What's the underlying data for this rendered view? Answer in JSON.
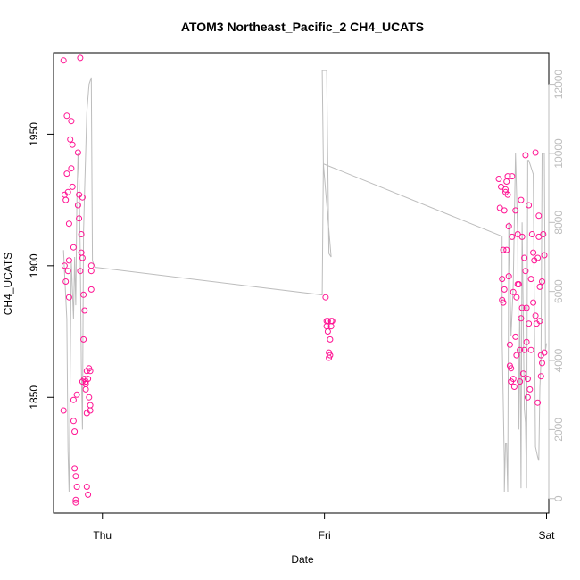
{
  "chart_data": {
    "type": "scatter",
    "title": "ATOM3 Northeast_Pacific_2 CH4_UCATS",
    "xlabel": "Date",
    "ylabel": "CH4_UCATS",
    "xlim": [
      -0.22,
      2.01
    ],
    "ylim": [
      1806,
      1981
    ],
    "y2lim": [
      -420,
      12920
    ],
    "x_ticks": [
      {
        "value": 0,
        "label": "Thu"
      },
      {
        "value": 1,
        "label": "Fri"
      },
      {
        "value": 2,
        "label": "Sat"
      }
    ],
    "y_ticks": [
      1850,
      1900,
      1950
    ],
    "y2_ticks": [
      0,
      2000,
      4000,
      6000,
      8000,
      10000,
      12000
    ],
    "grid": false,
    "colors": {
      "points": "#ff1493",
      "altitude_line": "#bdbdbd",
      "axis": "#000000",
      "right_axis": "#bdbdbd"
    },
    "series": [
      {
        "marker": "open-circle",
        "axis": "left",
        "points": [
          [
            -0.175,
            1978
          ],
          [
            -0.175,
            1845
          ],
          [
            -0.17,
            1927
          ],
          [
            -0.17,
            1900
          ],
          [
            -0.165,
            1894
          ],
          [
            -0.165,
            1925
          ],
          [
            -0.16,
            1957
          ],
          [
            -0.16,
            1935
          ],
          [
            -0.155,
            1928
          ],
          [
            -0.155,
            1898
          ],
          [
            -0.15,
            1916
          ],
          [
            -0.15,
            1902
          ],
          [
            -0.15,
            1888
          ],
          [
            -0.145,
            1948
          ],
          [
            -0.14,
            1955
          ],
          [
            -0.14,
            1937
          ],
          [
            -0.135,
            1946
          ],
          [
            -0.135,
            1930
          ],
          [
            -0.13,
            1907
          ],
          [
            -0.13,
            1849
          ],
          [
            -0.13,
            1841
          ],
          [
            -0.125,
            1837
          ],
          [
            -0.125,
            1823
          ],
          [
            -0.12,
            1820
          ],
          [
            -0.12,
            1811
          ],
          [
            -0.12,
            1810
          ],
          [
            -0.115,
            1851
          ],
          [
            -0.115,
            1816
          ],
          [
            -0.11,
            1943
          ],
          [
            -0.11,
            1923
          ],
          [
            -0.105,
            1918
          ],
          [
            -0.105,
            1927
          ],
          [
            -0.1,
            1979
          ],
          [
            -0.1,
            1898
          ],
          [
            -0.095,
            1912
          ],
          [
            -0.095,
            1905
          ],
          [
            -0.09,
            1903
          ],
          [
            -0.09,
            1926
          ],
          [
            -0.09,
            1856
          ],
          [
            -0.085,
            1889
          ],
          [
            -0.085,
            1872
          ],
          [
            -0.08,
            1883
          ],
          [
            -0.08,
            1857
          ],
          [
            -0.075,
            1855
          ],
          [
            -0.075,
            1856
          ],
          [
            -0.075,
            1853
          ],
          [
            -0.07,
            1860
          ],
          [
            -0.07,
            1844
          ],
          [
            -0.07,
            1816
          ],
          [
            -0.065,
            1813
          ],
          [
            -0.065,
            1857
          ],
          [
            -0.06,
            1850
          ],
          [
            -0.06,
            1861
          ],
          [
            -0.055,
            1847
          ],
          [
            -0.055,
            1860
          ],
          [
            -0.055,
            1845
          ],
          [
            -0.05,
            1891
          ],
          [
            -0.05,
            1898
          ],
          [
            -0.05,
            1900
          ],
          [
            1.005,
            1888
          ],
          [
            1.01,
            1879
          ],
          [
            1.01,
            1877
          ],
          [
            1.015,
            1875
          ],
          [
            1.015,
            1879
          ],
          [
            1.02,
            1865
          ],
          [
            1.02,
            1867
          ],
          [
            1.025,
            1866
          ],
          [
            1.025,
            1872
          ],
          [
            1.03,
            1877
          ],
          [
            1.03,
            1879
          ],
          [
            1.035,
            1879
          ],
          [
            1.785,
            1933
          ],
          [
            1.79,
            1922
          ],
          [
            1.795,
            1930
          ],
          [
            1.8,
            1887
          ],
          [
            1.8,
            1895
          ],
          [
            1.805,
            1886
          ],
          [
            1.805,
            1906
          ],
          [
            1.81,
            1921
          ],
          [
            1.81,
            1891
          ],
          [
            1.815,
            1929
          ],
          [
            1.815,
            1928
          ],
          [
            1.82,
            1932
          ],
          [
            1.82,
            1906
          ],
          [
            1.825,
            1934
          ],
          [
            1.825,
            1927
          ],
          [
            1.83,
            1896
          ],
          [
            1.83,
            1915
          ],
          [
            1.835,
            1862
          ],
          [
            1.835,
            1870
          ],
          [
            1.84,
            1861
          ],
          [
            1.84,
            1856
          ],
          [
            1.845,
            1934
          ],
          [
            1.845,
            1911
          ],
          [
            1.85,
            1890
          ],
          [
            1.85,
            1857
          ],
          [
            1.855,
            1854
          ],
          [
            1.86,
            1921
          ],
          [
            1.86,
            1873
          ],
          [
            1.865,
            1888
          ],
          [
            1.865,
            1866
          ],
          [
            1.87,
            1912
          ],
          [
            1.87,
            1893
          ],
          [
            1.875,
            1893
          ],
          [
            1.88,
            1868
          ],
          [
            1.88,
            1856
          ],
          [
            1.885,
            1880
          ],
          [
            1.885,
            1925
          ],
          [
            1.89,
            1911
          ],
          [
            1.89,
            1884
          ],
          [
            1.895,
            1859
          ],
          [
            1.9,
            1903
          ],
          [
            1.9,
            1868
          ],
          [
            1.905,
            1898
          ],
          [
            1.905,
            1942
          ],
          [
            1.91,
            1871
          ],
          [
            1.91,
            1884
          ],
          [
            1.915,
            1857
          ],
          [
            1.915,
            1850
          ],
          [
            1.92,
            1923
          ],
          [
            1.92,
            1878
          ],
          [
            1.925,
            1853
          ],
          [
            1.93,
            1868
          ],
          [
            1.93,
            1895
          ],
          [
            1.935,
            1912
          ],
          [
            1.94,
            1905
          ],
          [
            1.94,
            1886
          ],
          [
            1.945,
            1902
          ],
          [
            1.95,
            1943
          ],
          [
            1.95,
            1881
          ],
          [
            1.955,
            1878
          ],
          [
            1.96,
            1903
          ],
          [
            1.96,
            1848
          ],
          [
            1.965,
            1911
          ],
          [
            1.965,
            1919
          ],
          [
            1.97,
            1892
          ],
          [
            1.97,
            1879
          ],
          [
            1.975,
            1866
          ],
          [
            1.975,
            1858
          ],
          [
            1.98,
            1894
          ],
          [
            1.98,
            1863
          ],
          [
            1.985,
            1912
          ],
          [
            1.99,
            1904
          ],
          [
            1.99,
            1867
          ]
        ]
      },
      {
        "name": "",
        "marker": "line",
        "axis": "right",
        "points": [
          [
            -0.175,
            7200
          ],
          [
            -0.17,
            6500
          ],
          [
            -0.16,
            5200
          ],
          [
            -0.155,
            1400
          ],
          [
            -0.15,
            200
          ],
          [
            -0.14,
            6900
          ],
          [
            -0.13,
            5200
          ],
          [
            -0.125,
            7000
          ],
          [
            -0.12,
            5600
          ],
          [
            -0.115,
            8500
          ],
          [
            -0.11,
            10000
          ],
          [
            -0.105,
            9200
          ],
          [
            -0.1,
            7200
          ],
          [
            -0.095,
            3900
          ],
          [
            -0.09,
            2000
          ],
          [
            -0.085,
            7700
          ],
          [
            -0.08,
            8900
          ],
          [
            -0.07,
            11200
          ],
          [
            -0.06,
            12000
          ],
          [
            -0.05,
            12200
          ],
          [
            -0.045,
            6900
          ],
          [
            -0.04,
            6800
          ],
          [
            -0.03,
            6700
          ],
          [
            0.99,
            5900
          ],
          [
            0.995,
            9700
          ],
          [
            0.99,
            12400
          ],
          [
            1.01,
            12400
          ],
          [
            1.02,
            7100
          ],
          [
            1.03,
            7000
          ],
          [
            0.995,
            9700
          ],
          [
            1.8,
            7600
          ],
          [
            1.8,
            6400
          ],
          [
            1.8,
            4700
          ],
          [
            1.81,
            1000
          ],
          [
            1.81,
            200
          ],
          [
            1.815,
            1600
          ],
          [
            1.82,
            1600
          ],
          [
            1.825,
            200
          ],
          [
            1.83,
            8000
          ],
          [
            1.84,
            4700
          ],
          [
            1.85,
            6200
          ],
          [
            1.86,
            10000
          ],
          [
            1.87,
            7600
          ],
          [
            1.875,
            2000
          ],
          [
            1.88,
            5300
          ],
          [
            1.885,
            300
          ],
          [
            1.89,
            8000
          ],
          [
            1.9,
            2600
          ],
          [
            1.905,
            2200
          ],
          [
            1.91,
            300
          ],
          [
            1.915,
            9800
          ],
          [
            1.92,
            9800
          ],
          [
            1.93,
            9600
          ],
          [
            1.94,
            9400
          ],
          [
            1.95,
            1500
          ],
          [
            1.96,
            1200
          ],
          [
            1.965,
            1100
          ],
          [
            1.97,
            3200
          ],
          [
            1.975,
            4000
          ],
          [
            1.98,
            10000
          ],
          [
            1.99,
            10000
          ],
          [
            1.995,
            4300
          ],
          [
            2,
            4500
          ]
        ]
      }
    ]
  }
}
